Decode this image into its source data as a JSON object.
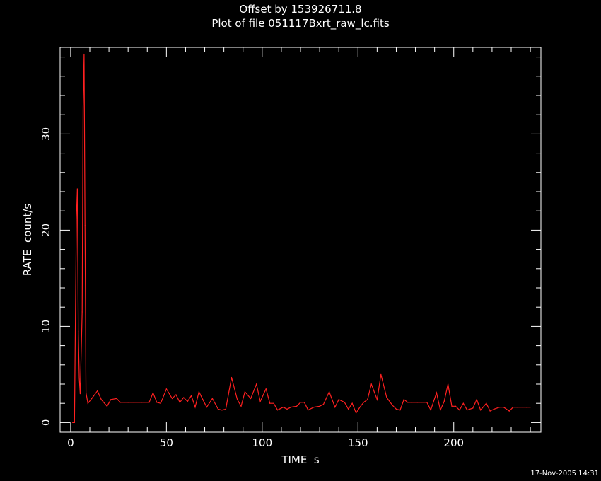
{
  "chart_data": {
    "type": "line",
    "title": "Offset by 153926711.8",
    "subtitle": "Plot of file 051117Bxrt_raw_lc.fits",
    "xlabel": "TIME  s",
    "ylabel": "RATE  count/s",
    "xlim": [
      -5.5,
      245.5
    ],
    "ylim": [
      -1.0,
      39.0
    ],
    "x_ticks": [
      0,
      50,
      100,
      150,
      200
    ],
    "y_ticks": [
      0,
      10,
      20,
      30
    ],
    "grid": false,
    "series": [
      {
        "color": "#ff2020",
        "x": [
          1,
          2,
          3,
          3.5,
          4,
          4.5,
          5,
          6,
          6.5,
          7,
          7.5,
          8,
          9,
          11,
          14,
          16,
          19,
          21,
          24,
          26,
          28,
          30,
          33,
          37,
          41,
          43,
          45,
          47,
          50,
          53,
          55,
          57,
          59,
          61,
          63,
          65,
          67,
          69,
          71,
          74,
          77,
          79,
          81,
          84,
          87,
          89,
          91,
          94,
          97,
          99,
          102,
          104,
          106,
          108,
          111,
          113,
          115,
          118,
          120,
          122,
          124,
          127,
          130,
          132,
          135,
          138,
          140,
          143,
          145,
          147,
          149,
          151,
          153,
          155,
          157,
          160,
          162,
          165,
          168,
          170,
          172,
          174,
          176,
          178,
          181,
          183,
          186,
          188,
          191,
          193,
          195,
          197,
          199,
          201,
          203,
          205,
          207,
          210,
          212,
          214,
          217,
          219,
          221,
          224,
          226,
          229,
          231,
          233,
          236,
          238,
          240
        ],
        "y": [
          0,
          0,
          21.2,
          24.3,
          9.5,
          4.6,
          3.0,
          11.5,
          32.7,
          38.3,
          20.5,
          3.1,
          2.0,
          2.5,
          3.3,
          2.4,
          1.7,
          2.4,
          2.5,
          2.1,
          2.1,
          2.1,
          2.1,
          2.1,
          2.1,
          3.1,
          2.1,
          2.0,
          3.5,
          2.5,
          2.9,
          2.1,
          2.6,
          2.2,
          2.8,
          1.6,
          3.2,
          2.4,
          1.6,
          2.5,
          1.4,
          1.3,
          1.4,
          4.7,
          2.4,
          1.7,
          3.2,
          2.5,
          4.0,
          2.2,
          3.5,
          2.0,
          2.0,
          1.3,
          1.6,
          1.4,
          1.6,
          1.7,
          2.1,
          2.1,
          1.3,
          1.6,
          1.7,
          1.9,
          3.2,
          1.6,
          2.4,
          2.1,
          1.4,
          2.0,
          1.0,
          1.6,
          2.1,
          2.4,
          4.0,
          2.4,
          5.0,
          2.6,
          1.8,
          1.4,
          1.3,
          2.4,
          2.1,
          2.1,
          2.1,
          2.1,
          2.1,
          1.3,
          3.1,
          1.3,
          2.2,
          4.0,
          1.7,
          1.7,
          1.3,
          2.0,
          1.3,
          1.5,
          2.4,
          1.3,
          2.0,
          1.2,
          1.4,
          1.6,
          1.6,
          1.2,
          1.6,
          1.6,
          1.6,
          1.6,
          1.6
        ]
      }
    ]
  },
  "footer": {
    "timestamp": "17-Nov-2005 14:31"
  }
}
